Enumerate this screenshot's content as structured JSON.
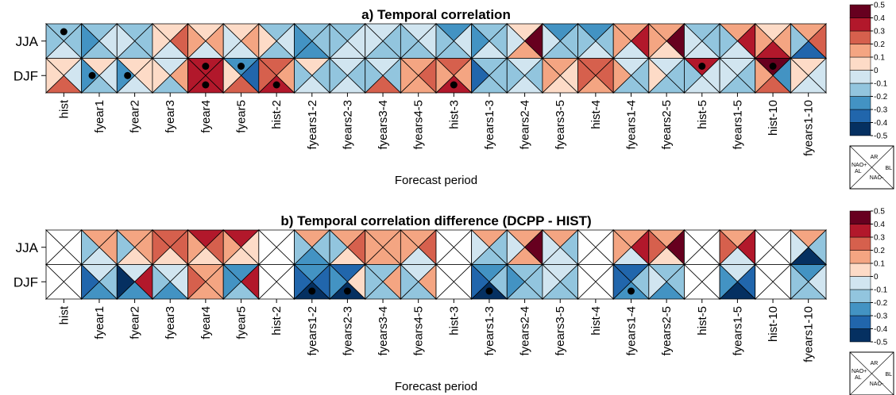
{
  "chart_data": [
    {
      "type": "triangle-heatmap",
      "title": "a) Temporal correlation",
      "x_label": "Forecast period",
      "categories": [
        "hist",
        "fyear1",
        "fyear2",
        "fyear3",
        "fyear4",
        "fyear5",
        "hist-2",
        "fyears1-2",
        "fyears2-3",
        "fyears3-4",
        "fyears4-5",
        "hist-3",
        "fyears1-3",
        "fyears2-4",
        "fyears3-5",
        "hist-4",
        "fyears1-4",
        "fyears2-5",
        "hist-5",
        "fyears1-5",
        "hist-10",
        "fyears1-10"
      ],
      "region_labels": [
        "AR",
        "BL",
        "NAO-",
        "NAO+",
        "AL"
      ],
      "series": [
        {
          "name": "JJA",
          "values": [
            [
              -0.15,
              -0.15,
              -0.05,
              -0.15
            ],
            [
              -0.15,
              -0.05,
              -0.15,
              -0.25
            ],
            [
              -0.15,
              -0.15,
              -0.15,
              -0.05
            ],
            [
              0.05,
              0.25,
              -0.05,
              0.05
            ],
            [
              0.05,
              0.15,
              -0.05,
              0.15
            ],
            [
              0.05,
              0.15,
              -0.05,
              -0.05
            ],
            [
              -0.15,
              -0.05,
              -0.15,
              0.05
            ],
            [
              -0.15,
              -0.15,
              -0.25,
              -0.25
            ],
            [
              -0.15,
              -0.05,
              -0.05,
              -0.15
            ],
            [
              -0.05,
              -0.15,
              -0.15,
              -0.05
            ],
            [
              -0.05,
              -0.05,
              -0.15,
              -0.15
            ],
            [
              -0.25,
              -0.05,
              -0.15,
              -0.15
            ],
            [
              -0.15,
              -0.15,
              -0.05,
              -0.25
            ],
            [
              0.05,
              0.45,
              0.15,
              -0.05
            ],
            [
              -0.25,
              -0.15,
              -0.15,
              -0.05
            ],
            [
              -0.25,
              -0.15,
              -0.05,
              -0.15
            ],
            [
              0.15,
              0.35,
              -0.05,
              0.15
            ],
            [
              0.15,
              0.45,
              0.05,
              0.15
            ],
            [
              -0.15,
              -0.15,
              -0.05,
              -0.05
            ],
            [
              0.15,
              0.35,
              -0.05,
              -0.15
            ],
            [
              0.05,
              0.15,
              0.35,
              0.15
            ],
            [
              0.15,
              0.25,
              -0.35,
              -0.15
            ]
          ],
          "significant": [
            [
              0
            ],
            [],
            [],
            [],
            [],
            [],
            [],
            [],
            [],
            [],
            [],
            [],
            [],
            [],
            [],
            [],
            [],
            [],
            [],
            [],
            [],
            []
          ]
        },
        {
          "name": "DJF",
          "values": [
            [
              0.05,
              -0.05,
              0.25,
              0.05
            ],
            [
              0.05,
              -0.05,
              -0.15,
              -0.25
            ],
            [
              0.05,
              0.05,
              -0.05,
              -0.25
            ],
            [
              -0.05,
              0.15,
              -0.15,
              0.05
            ],
            [
              0.35,
              0.35,
              0.35,
              0.35
            ],
            [
              -0.25,
              -0.35,
              0.25,
              0.05
            ],
            [
              0.25,
              0.15,
              0.35,
              0.25
            ],
            [
              0.05,
              -0.15,
              -0.05,
              -0.15
            ],
            [
              -0.05,
              -0.15,
              -0.05,
              -0.15
            ],
            [
              -0.05,
              -0.15,
              0.25,
              -0.15
            ],
            [
              0.15,
              0.25,
              0.15,
              0.15
            ],
            [
              0.25,
              0.15,
              0.35,
              0.15
            ],
            [
              -0.15,
              -0.15,
              -0.15,
              -0.35
            ],
            [
              -0.05,
              -0.15,
              -0.05,
              -0.15
            ],
            [
              0.15,
              0.05,
              0.05,
              0.15
            ],
            [
              0.25,
              0.25,
              0.15,
              0.25
            ],
            [
              -0.05,
              -0.15,
              -0.15,
              0.15
            ],
            [
              -0.05,
              -0.15,
              -0.15,
              0.05
            ],
            [
              0.35,
              -0.05,
              -0.05,
              -0.15
            ],
            [
              -0.05,
              -0.15,
              -0.15,
              -0.05
            ],
            [
              0.45,
              -0.25,
              0.25,
              0.15
            ],
            [
              0.05,
              -0.05,
              -0.05,
              0.05
            ]
          ],
          "significant": [
            [],
            [
              3
            ],
            [
              3
            ],
            [],
            [
              0,
              2
            ],
            [
              0
            ],
            [
              2
            ],
            [],
            [],
            [],
            [],
            [
              2
            ],
            [],
            [],
            [],
            [],
            [],
            [],
            [
              0
            ],
            [],
            [
              0
            ],
            []
          ]
        }
      ],
      "colorbar": {
        "ticks": [
          0.5,
          0.4,
          0.3,
          0.2,
          0.1,
          0,
          -0.1,
          -0.2,
          -0.3,
          -0.4,
          -0.5
        ],
        "colors": [
          "#053061",
          "#2166ac",
          "#4393c3",
          "#92c5de",
          "#d1e5f0",
          "#fddbc7",
          "#f4a582",
          "#d6604d",
          "#b2182b",
          "#67001f"
        ]
      }
    },
    {
      "type": "triangle-heatmap",
      "title": "b) Temporal correlation difference (DCPP - HIST)",
      "x_label": "Forecast period",
      "categories": [
        "hist",
        "fyear1",
        "fyear2",
        "fyear3",
        "fyear4",
        "fyear5",
        "hist-2",
        "fyears1-2",
        "fyears2-3",
        "fyears3-4",
        "fyears4-5",
        "hist-3",
        "fyears1-3",
        "fyears2-4",
        "fyears3-5",
        "hist-4",
        "fyears1-4",
        "fyears2-5",
        "hist-5",
        "fyears1-5",
        "hist-10",
        "fyears1-10"
      ],
      "region_labels": [
        "AR",
        "BL",
        "NAO-",
        "NAO+",
        "AL"
      ],
      "series": [
        {
          "name": "JJA",
          "values": [
            [
              null,
              null,
              null,
              null
            ],
            [
              0.15,
              0.15,
              -0.05,
              -0.15
            ],
            [
              0.15,
              0.15,
              0.05,
              -0.15
            ],
            [
              0.25,
              0.25,
              0.05,
              0.25
            ],
            [
              0.35,
              0.25,
              0.05,
              0.15
            ],
            [
              0.35,
              0.05,
              0.05,
              0.15
            ],
            [
              null,
              null,
              null,
              null
            ],
            [
              0.15,
              -0.15,
              -0.25,
              -0.15
            ],
            [
              0.15,
              0.25,
              0.05,
              -0.15
            ],
            [
              0.15,
              0.15,
              0.15,
              0.15
            ],
            [
              0.15,
              0.25,
              -0.05,
              0.15
            ],
            [
              null,
              null,
              null,
              null
            ],
            [
              0.15,
              -0.15,
              -0.15,
              -0.05
            ],
            [
              0.15,
              0.45,
              0.15,
              -0.05
            ],
            [
              0.15,
              -0.15,
              -0.05,
              -0.05
            ],
            [
              null,
              null,
              null,
              null
            ],
            [
              0.15,
              0.35,
              -0.05,
              0.15
            ],
            [
              0.15,
              0.45,
              0.05,
              0.25
            ],
            [
              null,
              null,
              null,
              null
            ],
            [
              0.15,
              0.35,
              -0.05,
              0.25
            ],
            [
              null,
              null,
              null,
              null
            ],
            [
              0.15,
              -0.15,
              -0.45,
              -0.05
            ]
          ],
          "significant": [
            [],
            [],
            [],
            [],
            [],
            [],
            [],
            [],
            [],
            [],
            [],
            [],
            [],
            [],
            [],
            [],
            [],
            [],
            [],
            [],
            [],
            []
          ]
        },
        {
          "name": "DJF",
          "values": [
            [
              null,
              null,
              null,
              null
            ],
            [
              -0.05,
              -0.15,
              -0.25,
              -0.35
            ],
            [
              -0.05,
              0.35,
              -0.25,
              -0.45
            ],
            [
              -0.05,
              -0.05,
              -0.25,
              -0.15
            ],
            [
              0.15,
              0.15,
              0.15,
              0.25
            ],
            [
              -0.25,
              0.35,
              -0.15,
              -0.25
            ],
            [
              null,
              null,
              null,
              null
            ],
            [
              -0.25,
              -0.35,
              -0.45,
              -0.35
            ],
            [
              -0.35,
              0.05,
              -0.45,
              -0.25
            ],
            [
              -0.15,
              0.15,
              -0.15,
              -0.15
            ],
            [
              -0.05,
              0.15,
              -0.15,
              -0.15
            ],
            [
              null,
              null,
              null,
              null
            ],
            [
              -0.25,
              -0.15,
              -0.45,
              -0.35
            ],
            [
              -0.15,
              -0.15,
              -0.15,
              -0.25
            ],
            [
              -0.05,
              -0.15,
              -0.15,
              -0.05
            ],
            [
              null,
              null,
              null,
              null
            ],
            [
              -0.35,
              -0.15,
              -0.25,
              -0.35
            ],
            [
              -0.15,
              -0.15,
              -0.25,
              -0.05
            ],
            [
              null,
              null,
              null,
              null
            ],
            [
              -0.05,
              -0.35,
              -0.45,
              -0.25
            ],
            [
              null,
              null,
              null,
              null
            ],
            [
              -0.25,
              -0.05,
              -0.15,
              -0.15
            ]
          ],
          "significant": [
            [],
            [],
            [],
            [],
            [],
            [],
            [],
            [
              2
            ],
            [
              2
            ],
            [],
            [],
            [],
            [
              2
            ],
            [],
            [],
            [],
            [
              2
            ],
            [],
            [],
            [],
            [],
            []
          ]
        }
      ],
      "colorbar": {
        "ticks": [
          0.5,
          0.4,
          0.3,
          0.2,
          0.1,
          0,
          -0.1,
          -0.2,
          -0.3,
          -0.4,
          -0.5
        ],
        "colors": [
          "#053061",
          "#2166ac",
          "#4393c3",
          "#92c5de",
          "#d1e5f0",
          "#fddbc7",
          "#f4a582",
          "#d6604d",
          "#b2182b",
          "#67001f"
        ]
      }
    }
  ]
}
